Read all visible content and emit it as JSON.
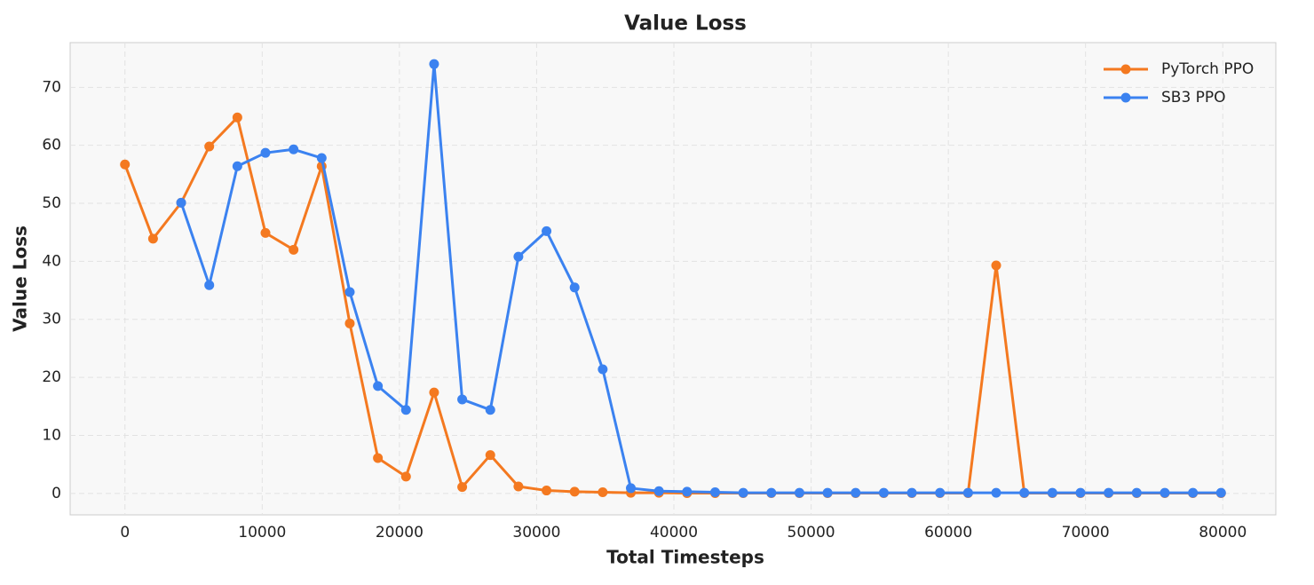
{
  "chart_data": {
    "type": "line",
    "title": "Value Loss",
    "x_label": "Total Timesteps",
    "y_label": "Value Loss",
    "x": [
      0,
      2048,
      4096,
      6144,
      8192,
      10240,
      12288,
      14336,
      16384,
      18432,
      20480,
      22528,
      24576,
      26624,
      28672,
      30720,
      32768,
      34816,
      36864,
      38912,
      40960,
      43008,
      45056,
      47104,
      49152,
      51200,
      53248,
      55296,
      57344,
      59392,
      61440,
      63488,
      65536,
      67584,
      69632,
      71680,
      73728,
      75776,
      77824,
      79872
    ],
    "series": [
      {
        "name": "PyTorch PPO",
        "color": "#f47920",
        "values": [
          56.7,
          43.9,
          50.1,
          59.8,
          64.8,
          44.9,
          42.0,
          56.4,
          29.3,
          6.1,
          2.9,
          17.4,
          1.1,
          6.6,
          1.2,
          0.5,
          0.3,
          0.2,
          0.1,
          0.1,
          0.05,
          0.05,
          0.05,
          0.05,
          0.05,
          0.05,
          0.05,
          0.05,
          0.05,
          0.05,
          0.05,
          39.3,
          0.05,
          0.05,
          0.05,
          0.05,
          0.05,
          0.05,
          0.05,
          0.05
        ]
      },
      {
        "name": "SB3 PPO",
        "color": "#3b82f0",
        "values": [
          null,
          null,
          50.1,
          35.9,
          56.4,
          58.7,
          59.3,
          57.8,
          34.7,
          18.5,
          14.4,
          74.0,
          16.2,
          14.4,
          40.8,
          45.2,
          35.5,
          21.4,
          0.9,
          0.4,
          0.3,
          0.2,
          0.1,
          0.1,
          0.1,
          0.1,
          0.1,
          0.1,
          0.1,
          0.1,
          0.1,
          0.1,
          0.1,
          0.1,
          0.1,
          0.1,
          0.1,
          0.1,
          0.1,
          0.1
        ]
      }
    ],
    "xlim": [
      -3994,
      83866
    ],
    "ylim": [
      -3.7,
      77.7
    ],
    "xticks": [
      0,
      10000,
      20000,
      30000,
      40000,
      50000,
      60000,
      70000,
      80000
    ],
    "yticks": [
      0,
      10,
      20,
      30,
      40,
      50,
      60,
      70
    ],
    "grid": true,
    "legend": "upper-right"
  }
}
